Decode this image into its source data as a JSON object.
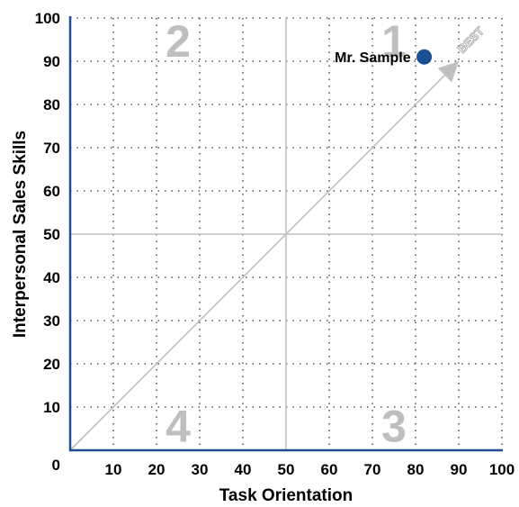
{
  "chart_data": {
    "type": "scatter",
    "xlabel": "Task Orientation",
    "ylabel": "Interpersonal Sales Skills",
    "xlim": [
      0,
      100
    ],
    "ylim": [
      0,
      100
    ],
    "x_ticks": [
      "10",
      "20",
      "30",
      "40",
      "50",
      "60",
      "70",
      "80",
      "90",
      "100"
    ],
    "y_ticks": [
      "0",
      "10",
      "20",
      "30",
      "40",
      "50",
      "60",
      "70",
      "80",
      "90",
      "100"
    ],
    "grid": "dotted",
    "midlines": [
      50,
      50
    ],
    "quadrant_labels": [
      {
        "text": "1",
        "quadrant": "top-right"
      },
      {
        "text": "2",
        "quadrant": "top-left"
      },
      {
        "text": "3",
        "quadrant": "bottom-right"
      },
      {
        "text": "4",
        "quadrant": "bottom-left"
      }
    ],
    "diagonal": {
      "from": [
        0,
        0
      ],
      "to": [
        90,
        90
      ],
      "label": "BEST"
    },
    "points": [
      {
        "label": "Mr. Sample",
        "x": 82,
        "y": 91
      }
    ],
    "colors": {
      "axis": "#1f4e96",
      "point": "#1a4f93",
      "midline": "#bfbfbf",
      "diagonal": "#bfbfbf",
      "quadrant_text": "#bfbfbf"
    }
  }
}
